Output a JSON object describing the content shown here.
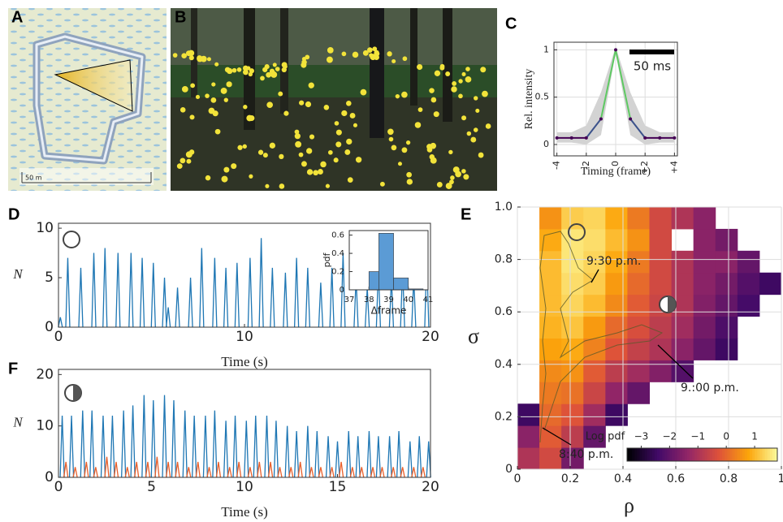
{
  "panel_labels": [
    "A",
    "B",
    "C",
    "D",
    "E",
    "F"
  ],
  "map_scale_label": "50 m",
  "chart_data": [
    {
      "type": "line",
      "x_label": "Timing (frame)",
      "y_label": "Rel. intensity",
      "annotation": "50 ms",
      "x": [
        -4,
        -3,
        -2,
        -1,
        0,
        1,
        2,
        3,
        4
      ],
      "values": [
        0.07,
        0.07,
        0.07,
        0.27,
        1,
        0.27,
        0.07,
        0.07,
        0.07
      ],
      "band_lower": [
        0.02,
        0.02,
        0.0,
        0.1,
        0.97,
        0.1,
        0.0,
        0.02,
        0.02
      ],
      "band_upper": [
        0.13,
        0.13,
        0.2,
        0.55,
        1.03,
        0.55,
        0.2,
        0.13,
        0.13
      ],
      "band_color": "#d3d3d3",
      "colors": [
        "#440154",
        "#3b528b",
        "#21918c",
        "#5ec962",
        "#fde725"
      ],
      "xlim": [
        -4.2,
        4.2
      ],
      "ylim": [
        -0.12,
        1.08
      ],
      "xticks": [
        -4,
        -2,
        0,
        {
          "value": 2,
          "label": "+2"
        },
        {
          "value": 4,
          "label": "+4"
        }
      ],
      "yticks": [
        0,
        0.5,
        1
      ],
      "grid": true
    },
    {
      "type": "spike",
      "x_label": "Time (s)",
      "y_label": "N",
      "series": [
        {
          "color": "#1f77b4",
          "x": [
            0.1,
            0.5,
            1.2,
            1.9,
            2.5,
            3.2,
            3.9,
            4.5,
            5.1,
            5.7,
            5.9,
            6.4,
            7.1,
            7.7,
            8.4,
            9.0,
            9.6,
            10.3,
            10.9,
            11.5,
            12.2,
            12.8,
            13.4,
            14.1,
            14.7,
            15.3,
            16.0,
            16.6,
            17.2,
            17.9,
            18.5,
            19.1,
            19.8
          ],
          "values": [
            1,
            7,
            6,
            7.5,
            8,
            7.5,
            7.5,
            7,
            6.5,
            5,
            2,
            4,
            5,
            8,
            7,
            6,
            6.5,
            7,
            9,
            6,
            5.5,
            7,
            6,
            4.5,
            6,
            7.5,
            5,
            4,
            6,
            5,
            6,
            5,
            7
          ]
        }
      ],
      "xlim": [
        0,
        20
      ],
      "ylim": [
        0,
        10.5
      ],
      "xticks": [
        0,
        10,
        20
      ],
      "yticks": [
        0,
        5,
        10
      ],
      "grid": false
    },
    {
      "type": "histogram",
      "x_label": "Δframe",
      "y_label": "pdf",
      "color": "#5b9bd5",
      "bins": [
        38,
        38.5,
        39.25,
        40,
        40.75
      ],
      "values": [
        0.2,
        0.62,
        0.13,
        0.01
      ],
      "xlim": [
        37,
        41
      ],
      "ylim": [
        0,
        0.65
      ],
      "xticks": [
        37,
        38,
        39,
        40,
        41
      ],
      "yticks": [
        0,
        0.2,
        0.4,
        0.6
      ],
      "grid": false
    },
    {
      "type": "heatmap",
      "x_label": "ρ",
      "y_label": "σ",
      "colorbar_label": "Log pdf",
      "annotations": [
        "9:30 p.m.",
        "9.:00 p.m.",
        "8:40 p.m."
      ],
      "colormap": [
        "#000004",
        "#420a68",
        "#932667",
        "#dd513a",
        "#fca50a",
        "#fcffa4"
      ],
      "zlim": [
        -3.5,
        1.8
      ],
      "zticks": [
        {
          "value": -3,
          "label": "−3"
        },
        {
          "value": -2,
          "label": "−2"
        },
        {
          "value": -1,
          "label": "−1"
        },
        0,
        1
      ],
      "z": [
        [
          -1.0,
          -0.5,
          -1.8,
          null,
          null,
          null,
          null,
          null,
          null,
          null,
          null,
          null
        ],
        [
          -1.5,
          -0.2,
          -0.8,
          -2.0,
          null,
          null,
          null,
          null,
          null,
          null,
          null,
          null
        ],
        [
          -2.5,
          0.0,
          -0.3,
          -1.2,
          -2.5,
          null,
          null,
          null,
          null,
          null,
          null,
          null
        ],
        [
          null,
          0.2,
          0.1,
          -0.6,
          -1.4,
          -2.0,
          null,
          null,
          null,
          null,
          null,
          null
        ],
        [
          null,
          0.4,
          0.5,
          -0.2,
          -0.8,
          -1.2,
          -1.6,
          -2.2,
          null,
          null,
          null,
          null
        ],
        [
          null,
          0.7,
          0.8,
          0.3,
          -0.3,
          -0.7,
          -1.0,
          -1.5,
          -2.0,
          -2.5,
          null,
          null
        ],
        [
          null,
          0.9,
          1.1,
          0.6,
          0.0,
          -0.4,
          -0.8,
          -1.2,
          -1.8,
          -2.3,
          null,
          null
        ],
        [
          null,
          1.0,
          1.3,
          1.0,
          0.4,
          -0.2,
          -0.6,
          -1.0,
          -1.6,
          -2.0,
          -2.4,
          null
        ],
        [
          null,
          1.0,
          1.4,
          1.2,
          0.6,
          0.0,
          -0.5,
          -1.0,
          -1.5,
          -1.8,
          -2.2,
          -2.5
        ],
        [
          null,
          1.0,
          1.5,
          1.3,
          0.8,
          0.2,
          -0.5,
          -1.0,
          -1.5,
          -1.5,
          -2.0,
          null
        ],
        [
          null,
          0.8,
          1.5,
          1.4,
          1.0,
          0.5,
          -0.5,
          null,
          -1.5,
          -1.8,
          null,
          null
        ],
        [
          null,
          0.5,
          1.2,
          1.3,
          0.8,
          0.2,
          -0.5,
          -1.0,
          -1.5,
          null,
          null,
          null
        ]
      ],
      "xlim": [
        0,
        1
      ],
      "ylim": [
        0,
        1
      ],
      "xticks": [
        0,
        0.2,
        0.4,
        0.6,
        0.8,
        1
      ],
      "yticks": [
        0,
        0.2,
        0.4,
        0.6,
        0.8,
        {
          "value": 1,
          "label": "1.0"
        }
      ],
      "grid": true
    },
    {
      "type": "spike",
      "x_label": "Time (s)",
      "y_label": "N",
      "series": [
        {
          "color": "#1f77b4",
          "x": [
            0.2,
            0.7,
            1.3,
            1.8,
            2.4,
            2.9,
            3.5,
            4.0,
            4.6,
            5.1,
            5.7,
            6.2,
            6.8,
            7.3,
            7.9,
            8.4,
            9.0,
            9.5,
            10.1,
            10.6,
            11.2,
            11.7,
            12.3,
            12.8,
            13.4,
            13.9,
            14.5,
            15.0,
            15.6,
            16.1,
            16.7,
            17.2,
            17.8,
            18.3,
            18.9,
            19.4,
            19.9
          ],
          "values": [
            12,
            12,
            13,
            13,
            12,
            12,
            13,
            14,
            16,
            15,
            16,
            15,
            13,
            12,
            12,
            13,
            11,
            12,
            11,
            12,
            12,
            11,
            10,
            9,
            10,
            9,
            8,
            7,
            9,
            8,
            9,
            8,
            8,
            9,
            7,
            8,
            7
          ]
        },
        {
          "color": "#e8602c",
          "x": [
            0.4,
            0.9,
            1.5,
            2.0,
            2.6,
            3.1,
            3.7,
            4.2,
            4.8,
            5.3,
            5.9,
            6.4,
            7.0,
            7.5,
            8.1,
            8.6,
            9.2,
            9.7,
            10.3,
            10.8,
            11.4,
            11.9,
            12.5,
            13.0,
            13.6,
            14.1,
            14.7,
            15.2,
            15.8,
            16.3,
            16.9,
            17.4,
            18.0,
            18.5,
            19.1,
            19.6
          ],
          "values": [
            3,
            2,
            3,
            2,
            4,
            3,
            2,
            3,
            3,
            4,
            3,
            3,
            2,
            3,
            2,
            3,
            2,
            3,
            2,
            3,
            3,
            2,
            2,
            3,
            2,
            2,
            2,
            3,
            2,
            2,
            2,
            2,
            2,
            2,
            2,
            2
          ]
        }
      ],
      "xlim": [
        0,
        20
      ],
      "ylim": [
        0,
        21
      ],
      "xticks": [
        0,
        5,
        10,
        15,
        20
      ],
      "yticks": [
        0,
        10,
        20
      ],
      "grid": false
    }
  ]
}
